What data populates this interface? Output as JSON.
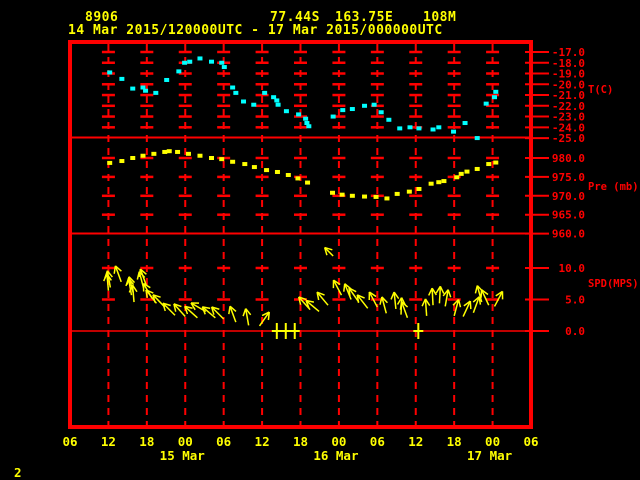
{
  "header": {
    "station_id": "8906",
    "latitude": "77.44S",
    "longitude": "163.75E",
    "elevation": "108M",
    "period": "14 Mar 2015/120000UTC - 17 Mar 2015/000000UTC"
  },
  "corner_label": "2",
  "colors": {
    "background": "#000000",
    "axis": "#ff0000",
    "temperature": "#00ffff",
    "pressure": "#ffff00",
    "wind": "#ffff00",
    "text": "#ffff00"
  },
  "xaxis": {
    "hour_labels": [
      "06",
      "12",
      "18",
      "00",
      "06",
      "12",
      "18",
      "00",
      "06",
      "12",
      "18",
      "00",
      "06"
    ],
    "date_labels": [
      {
        "text": "15 Mar",
        "tick": 3
      },
      {
        "text": "16 Mar",
        "tick": 7
      },
      {
        "text": "17 Mar",
        "tick": 11
      }
    ],
    "span_hours": 72,
    "data_start": "14 Mar 12:00 UTC",
    "data_end": "17 Mar 00:00 UTC"
  },
  "chart_data": [
    {
      "type": "scatter",
      "name": "temperature",
      "ylabel": "T(C)",
      "yticks": [
        -17.0,
        -18.0,
        -19.0,
        -20.0,
        -21.0,
        -22.0,
        -23.0,
        -24.0,
        -25.0
      ],
      "ylim": [
        -25.0,
        -16.0
      ],
      "points": [
        [
          0.2,
          -18.9
        ],
        [
          2.1,
          -19.5
        ],
        [
          3.8,
          -20.4
        ],
        [
          5.4,
          -20.3
        ],
        [
          5.8,
          -20.6
        ],
        [
          7.4,
          -20.8
        ],
        [
          9.1,
          -19.6
        ],
        [
          11.0,
          -18.8
        ],
        [
          11.9,
          -18.0
        ],
        [
          12.7,
          -17.9
        ],
        [
          14.3,
          -17.6
        ],
        [
          16.1,
          -17.9
        ],
        [
          17.7,
          -18.0
        ],
        [
          18.1,
          -18.4
        ],
        [
          19.4,
          -20.3
        ],
        [
          19.9,
          -20.8
        ],
        [
          21.1,
          -21.6
        ],
        [
          22.7,
          -21.9
        ],
        [
          24.4,
          -20.8
        ],
        [
          25.8,
          -21.2
        ],
        [
          26.3,
          -21.5
        ],
        [
          26.5,
          -21.9
        ],
        [
          27.8,
          -22.5
        ],
        [
          29.7,
          -22.8
        ],
        [
          30.8,
          -23.2
        ],
        [
          31.0,
          -23.6
        ],
        [
          31.3,
          -23.9
        ],
        [
          35.1,
          -23.0
        ],
        [
          36.6,
          -22.4
        ],
        [
          38.1,
          -22.3
        ],
        [
          40.0,
          -22.0
        ],
        [
          41.5,
          -21.9
        ],
        [
          42.6,
          -22.6
        ],
        [
          43.8,
          -23.3
        ],
        [
          45.5,
          -24.1
        ],
        [
          47.1,
          -24.0
        ],
        [
          48.5,
          -24.1
        ],
        [
          50.7,
          -24.2
        ],
        [
          51.6,
          -24.0
        ],
        [
          53.9,
          -24.4
        ],
        [
          55.7,
          -23.6
        ],
        [
          57.6,
          -25.0
        ],
        [
          59.0,
          -21.8
        ],
        [
          60.3,
          -21.2
        ],
        [
          60.5,
          -20.7
        ]
      ]
    },
    {
      "type": "scatter",
      "name": "pressure",
      "ylabel": "Pre (mb)",
      "yticks": [
        980.0,
        975.0,
        970.0,
        965.0,
        960.0
      ],
      "ylim": [
        960.0,
        985.0
      ],
      "points": [
        [
          0.2,
          978.7
        ],
        [
          2.1,
          979.2
        ],
        [
          3.8,
          980.0
        ],
        [
          5.4,
          980.6
        ],
        [
          7.1,
          981.1
        ],
        [
          8.8,
          981.6
        ],
        [
          9.5,
          981.8
        ],
        [
          10.8,
          981.6
        ],
        [
          12.5,
          981.1
        ],
        [
          14.3,
          980.6
        ],
        [
          16.1,
          980.0
        ],
        [
          17.7,
          979.7
        ],
        [
          19.4,
          979.0
        ],
        [
          21.3,
          978.4
        ],
        [
          22.8,
          977.6
        ],
        [
          24.7,
          976.8
        ],
        [
          26.4,
          976.3
        ],
        [
          28.1,
          975.5
        ],
        [
          29.6,
          974.6
        ],
        [
          31.1,
          973.5
        ],
        [
          35.0,
          970.8
        ],
        [
          36.5,
          970.3
        ],
        [
          38.1,
          970.0
        ],
        [
          40.0,
          969.8
        ],
        [
          41.8,
          969.7
        ],
        [
          43.5,
          969.3
        ],
        [
          45.1,
          970.5
        ],
        [
          47.0,
          971.1
        ],
        [
          48.5,
          971.8
        ],
        [
          50.4,
          973.2
        ],
        [
          51.6,
          973.6
        ],
        [
          52.4,
          973.9
        ],
        [
          54.4,
          974.9
        ],
        [
          55.1,
          975.8
        ],
        [
          56.0,
          976.4
        ],
        [
          57.6,
          977.1
        ],
        [
          59.4,
          978.4
        ],
        [
          60.5,
          978.8
        ]
      ]
    },
    {
      "type": "vector",
      "name": "wind_speed",
      "ylabel": "SPD(MPS)",
      "yticks": [
        10.0,
        5.0,
        0.0
      ],
      "ylim": [
        0.0,
        15.5
      ],
      "arrows": [
        [
          0.0,
          6.4,
          355
        ],
        [
          0.3,
          6.9,
          350
        ],
        [
          2.0,
          7.8,
          340
        ],
        [
          3.6,
          5.7,
          350
        ],
        [
          3.9,
          6.0,
          345
        ],
        [
          4.0,
          4.6,
          355
        ],
        [
          5.5,
          6.8,
          345
        ],
        [
          5.9,
          7.3,
          340
        ],
        [
          6.8,
          5.2,
          330
        ],
        [
          7.5,
          4.4,
          322
        ],
        [
          8.8,
          3.8,
          316
        ],
        [
          10.4,
          2.5,
          315
        ],
        [
          12.0,
          2.3,
          318
        ],
        [
          13.9,
          2.1,
          312
        ],
        [
          15.2,
          3.1,
          300
        ],
        [
          16.7,
          2.1,
          310
        ],
        [
          18.0,
          1.9,
          315
        ],
        [
          19.9,
          1.4,
          340
        ],
        [
          21.9,
          0.9,
          350
        ],
        [
          23.6,
          0.8,
          35
        ],
        [
          31.5,
          3.4,
          318
        ],
        [
          32.9,
          3.1,
          310
        ],
        [
          34.3,
          4.1,
          320
        ],
        [
          35.1,
          11.9,
          315
        ],
        [
          36.4,
          5.7,
          332
        ],
        [
          37.9,
          5.0,
          338
        ],
        [
          39.1,
          4.6,
          325
        ],
        [
          40.5,
          3.6,
          322
        ],
        [
          42.0,
          3.8,
          332
        ],
        [
          43.4,
          2.8,
          345
        ],
        [
          44.9,
          3.5,
          354
        ],
        [
          45.7,
          2.6,
          2
        ],
        [
          46.7,
          2.1,
          340
        ],
        [
          49.7,
          2.4,
          356
        ],
        [
          50.7,
          4.1,
          357
        ],
        [
          51.7,
          4.4,
          3
        ],
        [
          52.6,
          3.9,
          10
        ],
        [
          54.0,
          2.4,
          15
        ],
        [
          55.4,
          2.3,
          25
        ],
        [
          57.0,
          2.9,
          20
        ],
        [
          58.3,
          4.6,
          345
        ],
        [
          59.4,
          4.1,
          335
        ],
        [
          60.3,
          3.9,
          28
        ]
      ],
      "calm_hours": [
        26.3,
        27.7,
        29.1,
        48.4
      ]
    }
  ]
}
